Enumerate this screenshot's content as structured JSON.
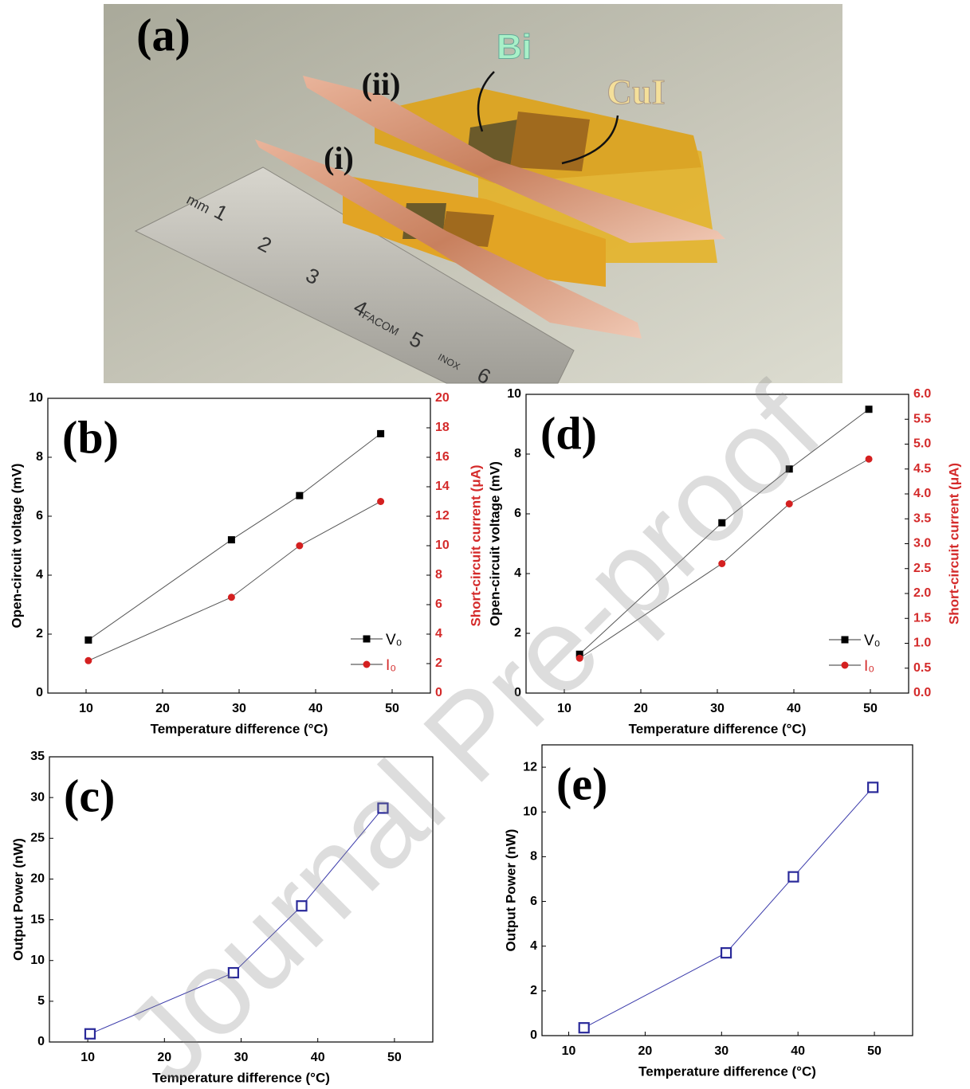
{
  "photo": {
    "panel_label": "(a)",
    "annotations": [
      "Bi",
      "CuI",
      "(ii)",
      "(i)"
    ],
    "ruler_marks": [
      "mm",
      "1",
      "2",
      "3",
      "4",
      "5",
      "6",
      "FACOM",
      "INOX"
    ]
  },
  "watermark": "Journal Pre-proof",
  "chart_data": [
    {
      "type": "line",
      "panel_label": "(b)",
      "xlabel": "Temperature difference (°C)",
      "ylabel": "Open-circuit voltage (mV)",
      "y2label": "Short-circuit current (μA)",
      "y2_color": "#d42a2a",
      "x": [
        10.3,
        29,
        37.9,
        48.5
      ],
      "xlim": [
        5,
        55
      ],
      "xticks": [
        10,
        20,
        30,
        40,
        50
      ],
      "ylim": [
        0,
        10
      ],
      "yticks": [
        0,
        2,
        4,
        6,
        8,
        10
      ],
      "y2lim": [
        0,
        20
      ],
      "y2ticks": [
        0,
        2,
        4,
        6,
        8,
        10,
        12,
        14,
        16,
        18,
        20
      ],
      "legend": "lower right",
      "series": [
        {
          "name": "V₀",
          "color": "#000000",
          "line_color": "#555555",
          "marker": "square",
          "values": [
            1.8,
            5.2,
            6.7,
            8.8
          ]
        },
        {
          "name": "I₀",
          "color": "#d42020",
          "line_color": "#555555",
          "marker": "circle",
          "axis": "y2",
          "values": [
            2.2,
            6.5,
            10,
            13
          ]
        }
      ]
    },
    {
      "type": "line",
      "panel_label": "(d)",
      "xlabel": "Temperature difference (°C)",
      "ylabel": "Open-circuit voltage  (mV)",
      "y2label": "Short-circuit current (μA)",
      "y2_color": "#d42a2a",
      "x": [
        12,
        30.6,
        39.4,
        49.8
      ],
      "xlim": [
        5,
        55
      ],
      "xticks": [
        10,
        20,
        30,
        40,
        50
      ],
      "ylim": [
        0,
        10
      ],
      "yticks": [
        0,
        2,
        4,
        6,
        8,
        10
      ],
      "y2lim": [
        0,
        6
      ],
      "y2ticks": [
        {
          "value": 0,
          "label": "0.0"
        },
        0.5,
        {
          "value": 1,
          "label": "1.0"
        },
        1.5,
        {
          "value": 2,
          "label": "2.0"
        },
        2.5,
        {
          "value": 3,
          "label": "3.0"
        },
        3.5,
        {
          "value": 4,
          "label": "4.0"
        },
        4.5,
        {
          "value": 5,
          "label": "5.0"
        },
        5.5,
        {
          "value": 6,
          "label": "6.0"
        }
      ],
      "legend": "lower right",
      "series": [
        {
          "name": "V₀",
          "color": "#000000",
          "line_color": "#555555",
          "marker": "square",
          "values": [
            1.3,
            5.7,
            7.5,
            9.5
          ]
        },
        {
          "name": "I₀",
          "color": "#d42020",
          "line_color": "#555555",
          "marker": "circle",
          "axis": "y2",
          "values": [
            0.7,
            2.6,
            3.8,
            4.7
          ]
        }
      ]
    },
    {
      "type": "line",
      "panel_label": "(c)",
      "xlabel": "Temperature difference (°C)",
      "ylabel": "Output Power (nW)",
      "x": [
        10.3,
        29,
        37.9,
        48.5
      ],
      "xlim": [
        5,
        55
      ],
      "xticks": [
        10,
        20,
        30,
        40,
        50
      ],
      "ylim": [
        0,
        35
      ],
      "yticks": [
        0,
        5,
        10,
        15,
        20,
        25,
        30,
        35
      ],
      "series": [
        {
          "color": "#2a2a9a",
          "line_color": "#3a3aaa",
          "marker": "open-square",
          "values": [
            1.0,
            8.5,
            16.7,
            28.7
          ]
        }
      ]
    },
    {
      "type": "line",
      "panel_label": "(e)",
      "xlabel": "Temperature difference (°C)",
      "ylabel": "Output Power (nW)",
      "x": [
        12,
        30.6,
        39.4,
        49.8
      ],
      "xlim": [
        6.5,
        55
      ],
      "xticks": [
        10,
        20,
        30,
        40,
        50
      ],
      "ylim": [
        0,
        13
      ],
      "yticks": [
        0,
        2,
        4,
        6,
        8,
        10,
        12
      ],
      "series": [
        {
          "color": "#2a2a9a",
          "line_color": "#3a3aaa",
          "marker": "open-square",
          "values": [
            0.35,
            3.7,
            7.1,
            11.1
          ]
        }
      ]
    }
  ]
}
